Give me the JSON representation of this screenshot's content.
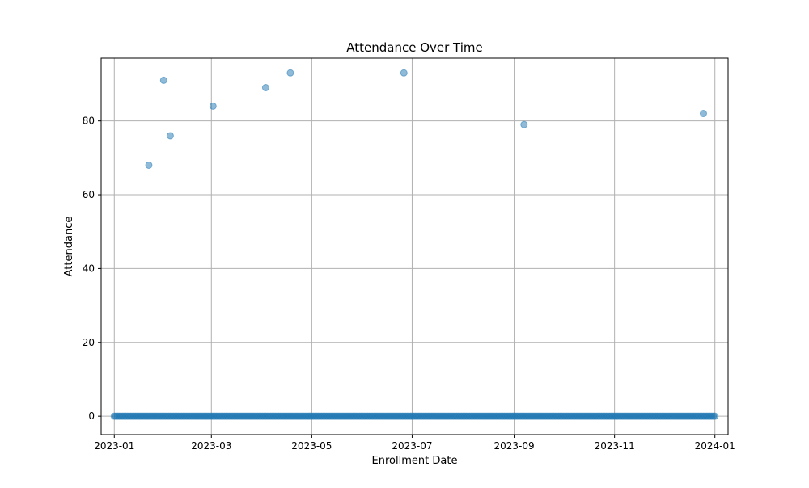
{
  "chart_data": {
    "type": "scatter",
    "title": "Attendance Over Time",
    "xlabel": "Enrollment Date",
    "ylabel": "Attendance",
    "xlim": [
      "2022-12-24",
      "2024-01-09"
    ],
    "ylim": [
      -5,
      97
    ],
    "grid": true,
    "x_ticks": [
      "2023-01-01",
      "2023-03-01",
      "2023-05-01",
      "2023-07-01",
      "2023-09-01",
      "2023-11-01",
      "2024-01-01"
    ],
    "x_tick_labels": [
      "2023-01",
      "2023-03",
      "2023-05",
      "2023-07",
      "2023-09",
      "2023-11",
      "2024-01"
    ],
    "y_ticks": [
      0,
      20,
      40,
      60,
      80
    ],
    "y_tick_labels": [
      "0",
      "20",
      "40",
      "60",
      "80"
    ],
    "point_color": "#1f77b4",
    "point_alpha": 0.5,
    "baseline": {
      "y": 0,
      "start": "2023-01-01",
      "end": "2024-01-01",
      "description": "one enrollment per day with attendance 0"
    },
    "points": [
      {
        "x": "2023-01-22",
        "y": 68
      },
      {
        "x": "2023-01-31",
        "y": 91
      },
      {
        "x": "2023-02-04",
        "y": 76
      },
      {
        "x": "2023-03-02",
        "y": 84
      },
      {
        "x": "2023-04-03",
        "y": 89
      },
      {
        "x": "2023-04-18",
        "y": 93
      },
      {
        "x": "2023-06-26",
        "y": 93
      },
      {
        "x": "2023-09-07",
        "y": 79
      },
      {
        "x": "2023-12-25",
        "y": 82
      }
    ]
  }
}
